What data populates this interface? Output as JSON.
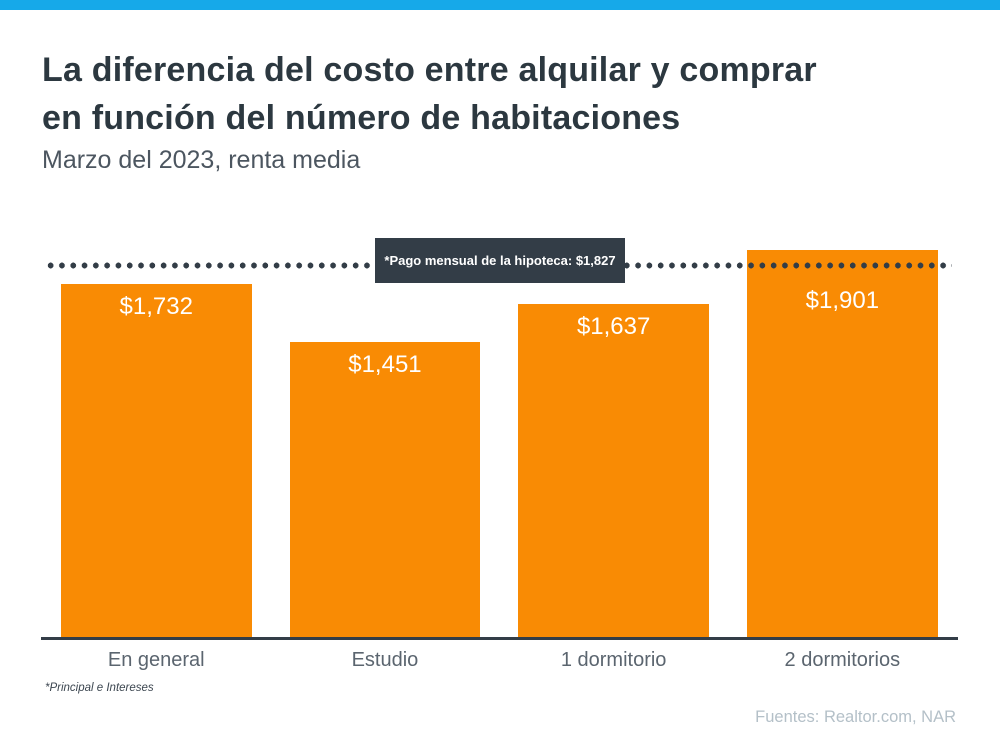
{
  "page": {
    "title_lines": [
      "La diferencia del costo entre alquilar y comprar",
      "en función del número de habitaciones"
    ],
    "subtitle": "Marzo del 2023, renta media",
    "footnote": "*Principal e Intereses",
    "source": "Fuentes: Realtor.com, NAR",
    "accent_color": "#16A9E9",
    "dark_color": "#333D47"
  },
  "chart_data": {
    "type": "bar",
    "title": "La diferencia del costo entre alquilar y comprar en función del número de habitaciones",
    "subtitle": "Marzo del 2023, renta media",
    "categories": [
      "En general",
      "Estudio",
      "1 dormitorio",
      "2 dormitorios"
    ],
    "values": [
      1732,
      1451,
      1637,
      1901
    ],
    "value_labels": [
      "$1,732",
      "$1,451",
      "$1,637",
      "$1,901"
    ],
    "bar_color": "#F98B04",
    "reference_line": {
      "label": "*Pago mensual de la hipoteca: $1,827",
      "value": 1827,
      "style": "dotted",
      "color": "#333D47",
      "position": "horizontal"
    },
    "ylim": [
      0,
      2000
    ],
    "grid": false,
    "legend": false,
    "xlabel": "",
    "ylabel": ""
  }
}
